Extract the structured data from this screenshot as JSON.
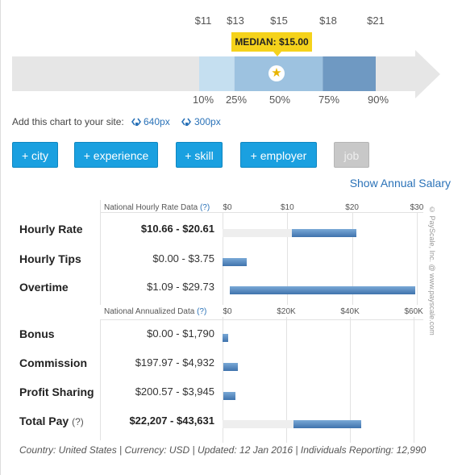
{
  "percentile_chart": {
    "values": [
      11,
      13,
      15,
      18,
      21
    ],
    "value_labels": [
      "$11",
      "$13",
      "$15",
      "$18",
      "$21"
    ],
    "percentiles": [
      "10%",
      "25%",
      "50%",
      "75%",
      "90%"
    ],
    "median_label": "MEDIAN: $15.00",
    "colors": {
      "p10_25": "#c5dff0",
      "p25_75": "#9dc2e0",
      "p75_90": "#6f99c2",
      "arrow": "#e6e6e6",
      "median": "#f5d21b"
    }
  },
  "embed": {
    "text": "Add this chart to your site:",
    "link_640": "640px",
    "link_300": "300px"
  },
  "filters": [
    "+ city",
    "+ experience",
    "+ skill",
    "+ employer",
    "job"
  ],
  "show_annual": "Show Annual Salary",
  "chart_data": [
    {
      "type": "bar",
      "title": "National Hourly Rate Data",
      "help": "(?)",
      "ticks": [
        "$0",
        "$10",
        "$20",
        "$30"
      ],
      "xlim": [
        0,
        31
      ],
      "categories": [
        "Hourly Rate",
        "Hourly Tips",
        "Overtime"
      ],
      "ranges": [
        [
          10.66,
          20.61
        ],
        [
          0.0,
          3.75
        ],
        [
          1.09,
          29.73
        ]
      ],
      "range_labels": [
        "$10.66 - $20.61",
        "$0.00 - $3.75",
        "$1.09 - $29.73"
      ],
      "background_range": [
        [
          0,
          20.61
        ],
        null,
        null
      ]
    },
    {
      "type": "bar",
      "title": "National Annualized Data",
      "help": "(?)",
      "ticks": [
        "$0",
        "$20K",
        "$40K",
        "$60K"
      ],
      "xlim": [
        0,
        63000
      ],
      "categories": [
        "Bonus",
        "Commission",
        "Profit Sharing",
        "Total Pay"
      ],
      "category_help": [
        null,
        null,
        null,
        "(?)"
      ],
      "ranges": [
        [
          0,
          1790
        ],
        [
          197.97,
          4932
        ],
        [
          200.57,
          3945
        ],
        [
          22207,
          43631
        ]
      ],
      "range_labels": [
        "$0.00 - $1,790",
        "$197.97 - $4,932",
        "$200.57 - $3,945",
        "$22,207 - $43,631"
      ],
      "background_range": [
        null,
        null,
        null,
        [
          0,
          43631
        ]
      ]
    }
  ],
  "footer": "Country: United States | Currency: USD | Updated: 12 Jan 2016 | Individuals Reporting: 12,990",
  "watermark": "© PayScale, Inc. @ www.payscale.com"
}
